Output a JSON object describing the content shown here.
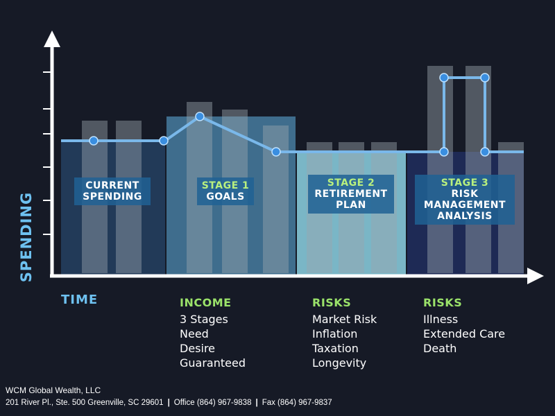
{
  "axes": {
    "y_label": "SPENDING",
    "x_label": "TIME"
  },
  "colors": {
    "background": "#161a26",
    "axis": "#ffffff",
    "accent_blue": "#6ec1f0",
    "heading_green": "#9be36a",
    "panel_current": "#223a58",
    "panel_stage1": "#3f6d8d",
    "panel_stage2": "#7ab6c6",
    "panel_stage3": "#1e2a55",
    "bar_gray": "#7e8896",
    "line_blue": "#7ab8ea"
  },
  "chart_data": {
    "type": "diagram",
    "ylabel": "SPENDING",
    "xlabel": "TIME",
    "spending_profile": [
      {
        "segment": "current",
        "level": "flat"
      },
      {
        "segment": "stage1",
        "level": "peak then decline"
      },
      {
        "segment": "stage2",
        "level": "flat lower"
      },
      {
        "segment": "stage3",
        "level": "spike"
      }
    ]
  },
  "stages": [
    {
      "lines": [
        "CURRENT",
        "SPENDING"
      ]
    },
    {
      "head": "STAGE 1",
      "lines": [
        "GOALS"
      ]
    },
    {
      "head": "STAGE 2",
      "lines": [
        "RETIREMENT",
        "PLAN"
      ]
    },
    {
      "head": "STAGE 3",
      "lines": [
        "RISK",
        "MANAGEMENT",
        "ANALYSIS"
      ]
    }
  ],
  "income": {
    "heading": "INCOME",
    "items": [
      "3 Stages",
      "Need",
      "Desire",
      "Guaranteed"
    ]
  },
  "risks_stage2": {
    "heading": "RISKS",
    "items": [
      "Market Risk",
      "Inflation",
      "Taxation",
      "Longevity"
    ]
  },
  "risks_stage3": {
    "heading": "RISKS",
    "items": [
      "Illness",
      "Extended Care",
      "Death"
    ]
  },
  "footer": {
    "company": "WCM Global Wealth, LLC",
    "address": "201 River Pl., Ste. 500 Greenville, SC 29601",
    "office": "Office (864) 967-9838",
    "fax": "Fax (864) 967-9837"
  }
}
